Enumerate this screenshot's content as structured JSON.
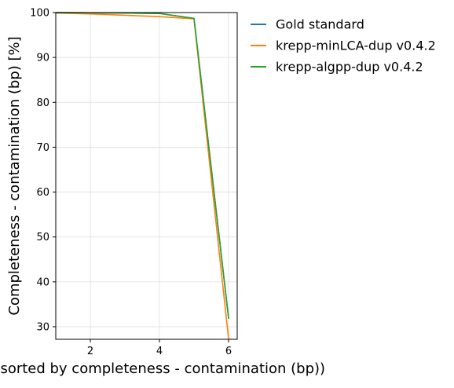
{
  "chart_data": {
    "type": "line",
    "title": "",
    "xlabel": "Bin (sorted by completeness - contamination (bp))",
    "ylabel": "Completeness - contamination (bp) [%]",
    "xlim": [
      1,
      6.25
    ],
    "ylim": [
      27.2,
      100
    ],
    "x_ticks": [
      2,
      4,
      6
    ],
    "y_ticks": [
      30,
      40,
      50,
      60,
      70,
      80,
      90,
      100
    ],
    "grid": true,
    "legend_position": "outside-top-right",
    "series": [
      {
        "name": "Gold standard",
        "color": "#1f77b4",
        "x": [
          1,
          2,
          3,
          4,
          5,
          6
        ],
        "y": [
          99.98,
          99.95,
          99.9,
          99.8,
          98.7,
          31.9
        ]
      },
      {
        "name": "krepp-minLCA-dup v0.4.2",
        "color": "#ff7f0e",
        "x": [
          1,
          2,
          3,
          4,
          5,
          6
        ],
        "y": [
          99.9,
          99.7,
          99.4,
          99.1,
          98.6,
          27.3
        ]
      },
      {
        "name": "krepp-algpp-dup v0.4.2",
        "color": "#2ca02c",
        "x": [
          1,
          2,
          3,
          4,
          5,
          6
        ],
        "y": [
          99.98,
          99.95,
          99.9,
          99.8,
          98.7,
          31.9
        ]
      }
    ]
  }
}
